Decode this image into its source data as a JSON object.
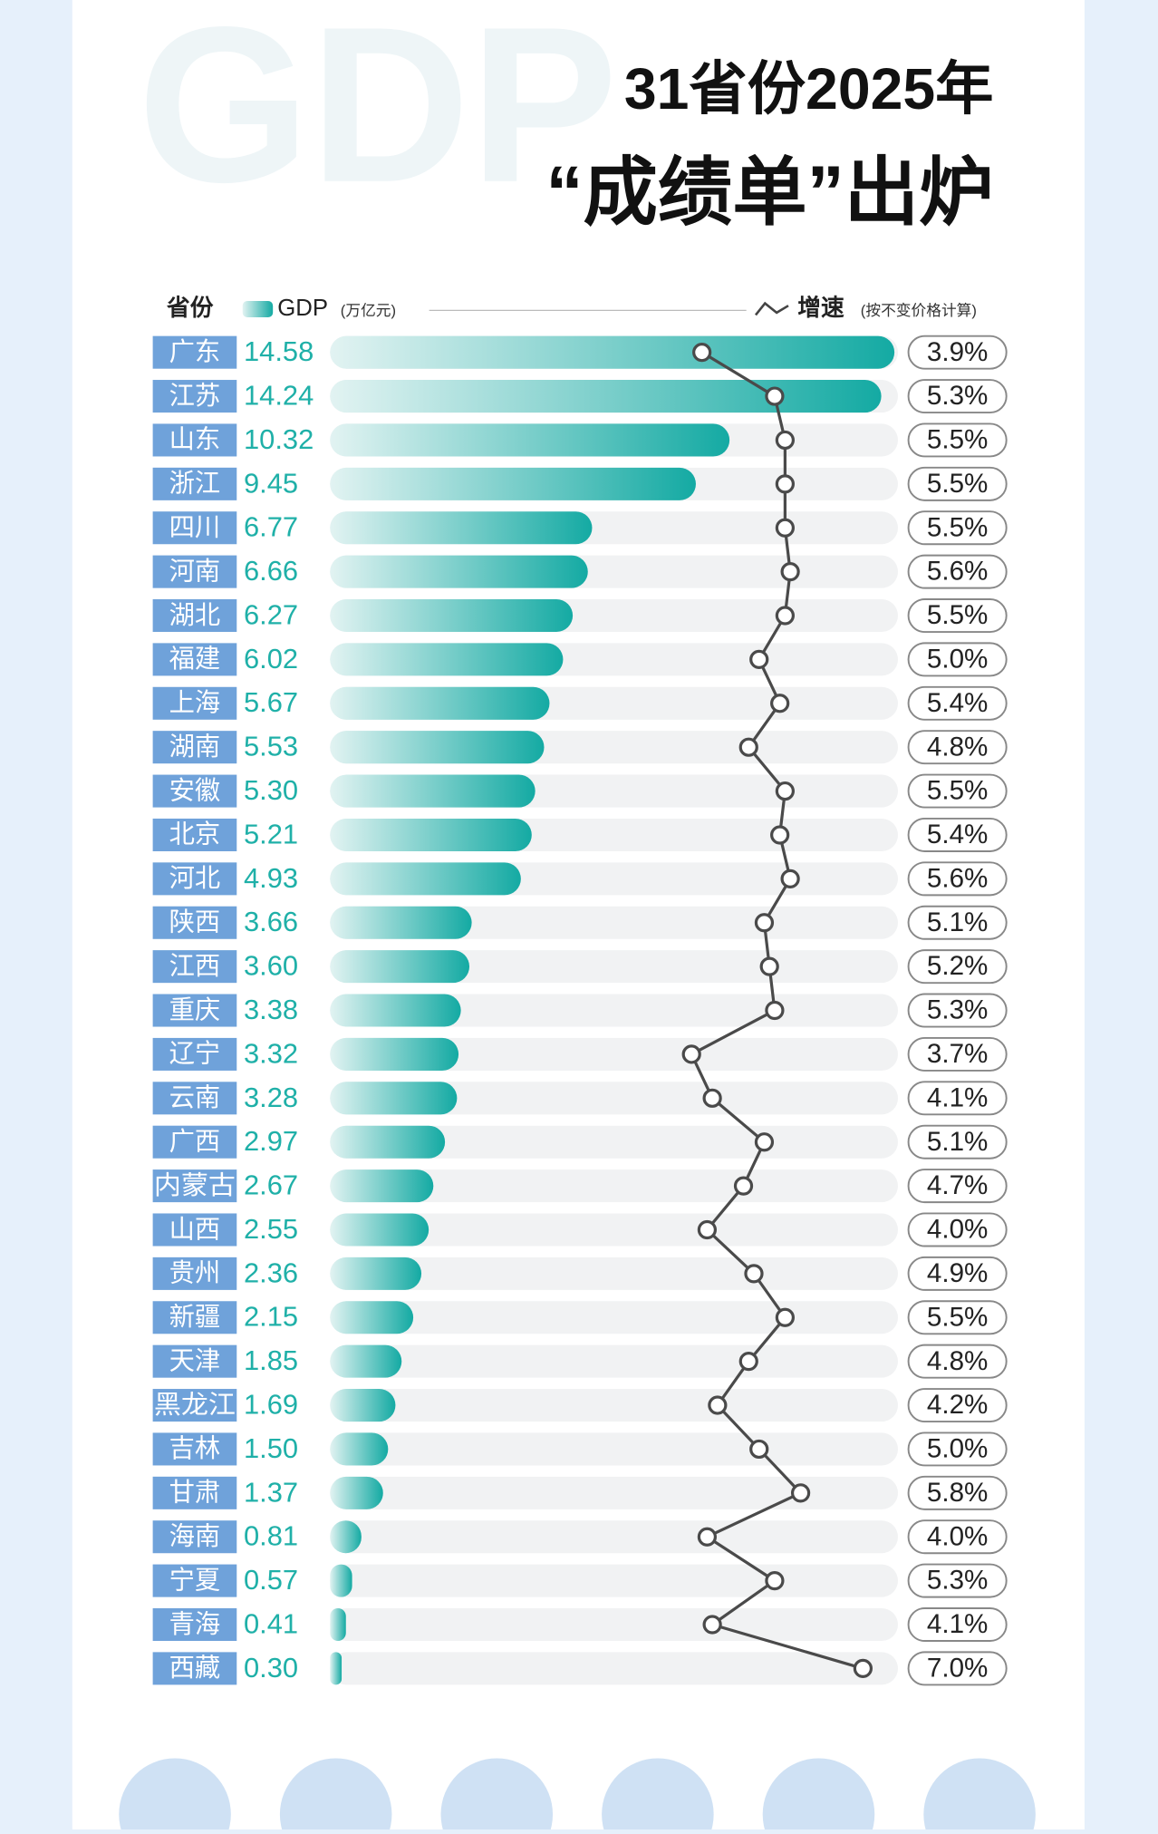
{
  "chart_data": {
    "type": "bar",
    "watermark": "GDP",
    "title": "31省份2025年",
    "subtitle": "“成绩单”出炉",
    "category_label": "省份",
    "categories": [
      "广东",
      "江苏",
      "山东",
      "浙江",
      "四川",
      "河南",
      "湖北",
      "福建",
      "上海",
      "湖南",
      "安徽",
      "北京",
      "河北",
      "陕西",
      "江西",
      "重庆",
      "辽宁",
      "云南",
      "广西",
      "内蒙古",
      "山西",
      "贵州",
      "新疆",
      "天津",
      "黑龙江",
      "吉林",
      "甘肃",
      "海南",
      "宁夏",
      "青海",
      "西藏"
    ],
    "series": [
      {
        "name": "GDP",
        "unit": "(万亿元)",
        "color": "#1fb0a8",
        "values": [
          14.58,
          14.24,
          10.32,
          9.45,
          6.77,
          6.66,
          6.27,
          6.02,
          5.67,
          5.53,
          5.3,
          5.21,
          4.93,
          3.66,
          3.6,
          3.38,
          3.32,
          3.28,
          2.97,
          2.67,
          2.55,
          2.36,
          2.15,
          1.85,
          1.69,
          1.5,
          1.37,
          0.81,
          0.57,
          0.41,
          0.3
        ],
        "value_labels": [
          "14.58",
          "14.24",
          "10.32",
          "9.45",
          "6.77",
          "6.66",
          "6.27",
          "6.02",
          "5.67",
          "5.53",
          "5.30",
          "5.21",
          "4.93",
          "3.66",
          "3.60",
          "3.38",
          "3.32",
          "3.28",
          "2.97",
          "2.67",
          "2.55",
          "2.36",
          "2.15",
          "1.85",
          "1.69",
          "1.50",
          "1.37",
          "0.81",
          "0.57",
          "0.41",
          "0.30"
        ]
      },
      {
        "name": "增速",
        "unit": "(按不变价格计算)",
        "type": "line",
        "color": "#4a4a4a",
        "values": [
          3.9,
          5.3,
          5.5,
          5.5,
          5.5,
          5.6,
          5.5,
          5.0,
          5.4,
          4.8,
          5.5,
          5.4,
          5.6,
          5.1,
          5.2,
          5.3,
          3.7,
          4.1,
          5.1,
          4.7,
          4.0,
          4.9,
          5.5,
          4.8,
          4.2,
          5.0,
          5.8,
          4.0,
          5.3,
          4.1,
          7.0
        ],
        "value_labels": [
          "3.9%",
          "5.3%",
          "5.5%",
          "5.5%",
          "5.5%",
          "5.6%",
          "5.5%",
          "5.0%",
          "5.4%",
          "4.8%",
          "5.5%",
          "5.4%",
          "5.6%",
          "5.1%",
          "5.2%",
          "5.3%",
          "3.7%",
          "4.1%",
          "5.1%",
          "4.7%",
          "4.0%",
          "4.9%",
          "5.5%",
          "4.8%",
          "4.2%",
          "5.0%",
          "5.8%",
          "4.0%",
          "5.3%",
          "4.1%",
          "7.0%"
        ]
      }
    ]
  }
}
